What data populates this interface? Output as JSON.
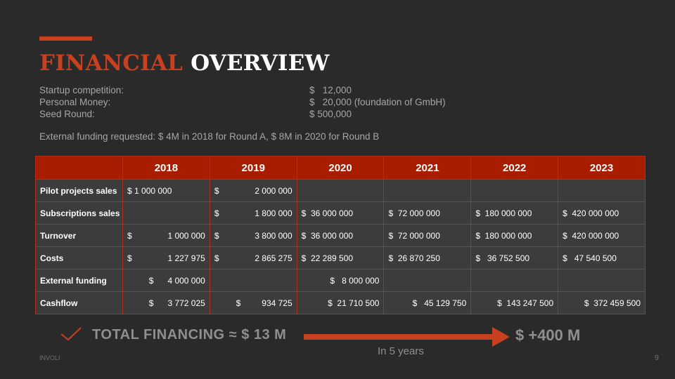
{
  "title": {
    "part1": "FINANCIAL",
    "part2": "OVERVIEW"
  },
  "funding": [
    {
      "label": "Startup competition:",
      "value": "$   12,000"
    },
    {
      "label": "Personal Money:",
      "value": "$   20,000 (foundation of GmbH)"
    },
    {
      "label": "Seed Round:",
      "value": "$ 500,000"
    }
  ],
  "external_funding": "External funding requested: $ 4M in 2018 for Round A, $ 8M in 2020 for Round B",
  "table": {
    "years": [
      "2018",
      "2019",
      "2020",
      "2021",
      "2022",
      "2023"
    ],
    "rows": [
      {
        "label": "Pilot projects sales",
        "cells": [
          "$ 1 000 000",
          "$|2 000 000",
          "",
          "",
          "",
          ""
        ]
      },
      {
        "label": "Subscriptions sales",
        "cells": [
          "",
          "$|1 800 000",
          "$  36 000 000",
          "$  72 000 000",
          "$  180 000 000",
          "$  420 000 000"
        ]
      },
      {
        "label": "Turnover",
        "cells": [
          "$|1 000 000",
          "$|3 800 000",
          "$  36 000 000",
          "$  72 000 000",
          "$  180 000 000",
          "$  420 000 000"
        ]
      },
      {
        "label": "Costs",
        "cells": [
          "$|1 227 975",
          "$|2 865 275",
          "$  22 289 500",
          "$  26 870 250",
          "$   36 752 500",
          "$   47 540 500"
        ]
      },
      {
        "label": "External funding",
        "cells": [
          "$      4 000 000",
          "",
          "$   8 000 000",
          "",
          "",
          ""
        ]
      },
      {
        "label": "Cashflow",
        "cells": [
          "$      3 772 025",
          "$         934 725",
          "$  21 710 500",
          "$   45 129 750",
          "$  143 247 500",
          "$  372 459 500"
        ]
      }
    ]
  },
  "summary": {
    "total": "TOTAL FINANCING ≈ $ 13 M",
    "result": "$ +400 M",
    "years_note": "In 5 years"
  },
  "footer": {
    "brand": "INVOLI",
    "page": "9"
  },
  "colors": {
    "accent": "#c7401f",
    "header_bg": "#a81d00",
    "cell_bg": "#3c3c3c",
    "background": "#2b2a2a"
  },
  "icons": {
    "check": "check-icon",
    "arrow": "arrow-right-icon"
  }
}
